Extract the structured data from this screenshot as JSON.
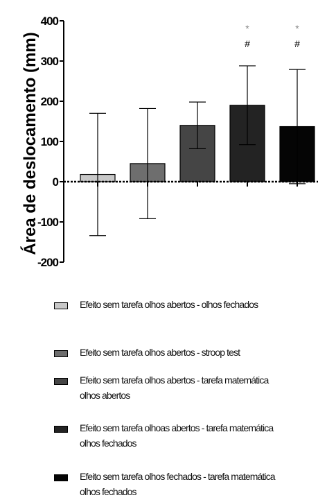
{
  "chart_data": {
    "type": "bar",
    "ylabel": "Área de deslocamento (mm)",
    "ylim": [
      -200,
      400
    ],
    "yticks": [
      -200,
      -100,
      0,
      100,
      200,
      300,
      400
    ],
    "grid": false,
    "legend_position": "bottom",
    "series": [
      {
        "name": "Efeito sem tarefa olhos abertos - olhos fechados",
        "value": 18,
        "error": 152,
        "color": "#c8c8c8",
        "annotations": []
      },
      {
        "name": "Efeito sem tarefa olhos abertos - stroop test",
        "value": 45,
        "error": 137,
        "color": "#6e6e6e",
        "annotations": []
      },
      {
        "name": "Efeito sem tarefa olhos abertos - tarefa matemática olhos abertos",
        "value": 140,
        "error": 58,
        "color": "#454545",
        "annotations": []
      },
      {
        "name": "Efeito sem tarefa olhoas abertos - tarefa matemática olhos fechados",
        "value": 190,
        "error": 98,
        "color": "#232323",
        "annotations": [
          "*",
          "#"
        ]
      },
      {
        "name": "Efeito sem tarefa olhos fechados - tarefa matemática olhos fechados",
        "value": 137,
        "error": 142,
        "color": "#050505",
        "annotations": [
          "*",
          "#"
        ]
      }
    ]
  }
}
